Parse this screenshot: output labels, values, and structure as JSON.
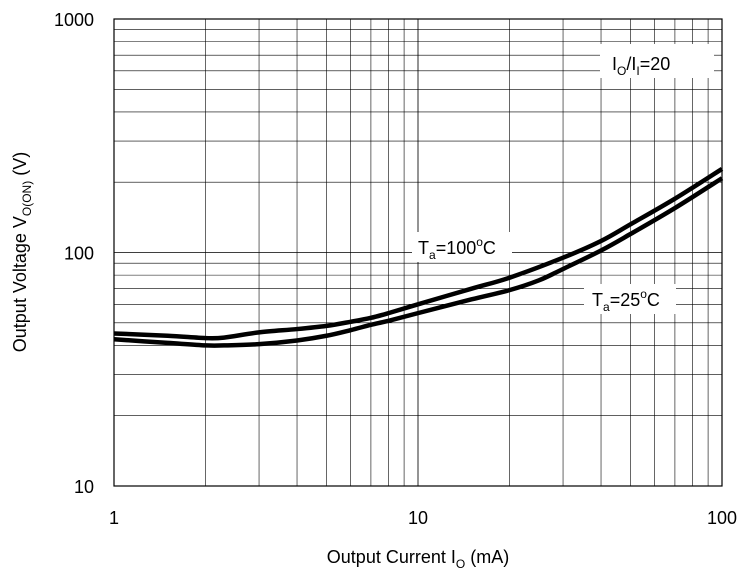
{
  "chart_data": {
    "type": "line",
    "title": "",
    "x_scale": "log",
    "y_scale": "log",
    "xlim": [
      1,
      100
    ],
    "ylim": [
      10,
      1000
    ],
    "grid": true,
    "x_ticks": [
      "1",
      "10",
      "100"
    ],
    "y_ticks": [
      "10",
      "100",
      "1000"
    ],
    "xlabel": {
      "main": "Output Current  I",
      "sub": "O",
      "unit": " (mA)"
    },
    "ylabel": {
      "main": "Output Voltage V",
      "sub": "O(ON)",
      "unit": " (V)"
    },
    "legend_box": {
      "pre": "I",
      "sub1": "O",
      "mid": "/I",
      "sub2": "I",
      "post": "=20"
    },
    "series": [
      {
        "name": "Ta=100°C",
        "label": {
          "pre": "T",
          "sub": "a",
          "val": "=100",
          "sup": "o",
          "post": "C"
        },
        "x": [
          1,
          1.5,
          2,
          2.3,
          3,
          4,
          5,
          6,
          7,
          8,
          10,
          15,
          20,
          30,
          40,
          50,
          70,
          100
        ],
        "y": [
          45,
          44,
          43,
          43.2,
          45.5,
          47,
          48.5,
          50.5,
          52.5,
          55,
          60,
          70,
          78,
          95,
          112,
          132,
          170,
          228
        ]
      },
      {
        "name": "Ta=25°C",
        "label": {
          "pre": "T",
          "sub": "a",
          "val": "=25",
          "sup": "o",
          "post": "C"
        },
        "x": [
          1,
          1.5,
          2,
          2.3,
          3,
          4,
          5,
          6,
          7,
          8,
          10,
          15,
          20,
          25,
          30,
          40,
          50,
          70,
          100
        ],
        "y": [
          42.5,
          41,
          40,
          40,
          40.5,
          42,
          44,
          46.5,
          49,
          51,
          55,
          63,
          69,
          76,
          85,
          102,
          120,
          155,
          208
        ]
      }
    ]
  }
}
